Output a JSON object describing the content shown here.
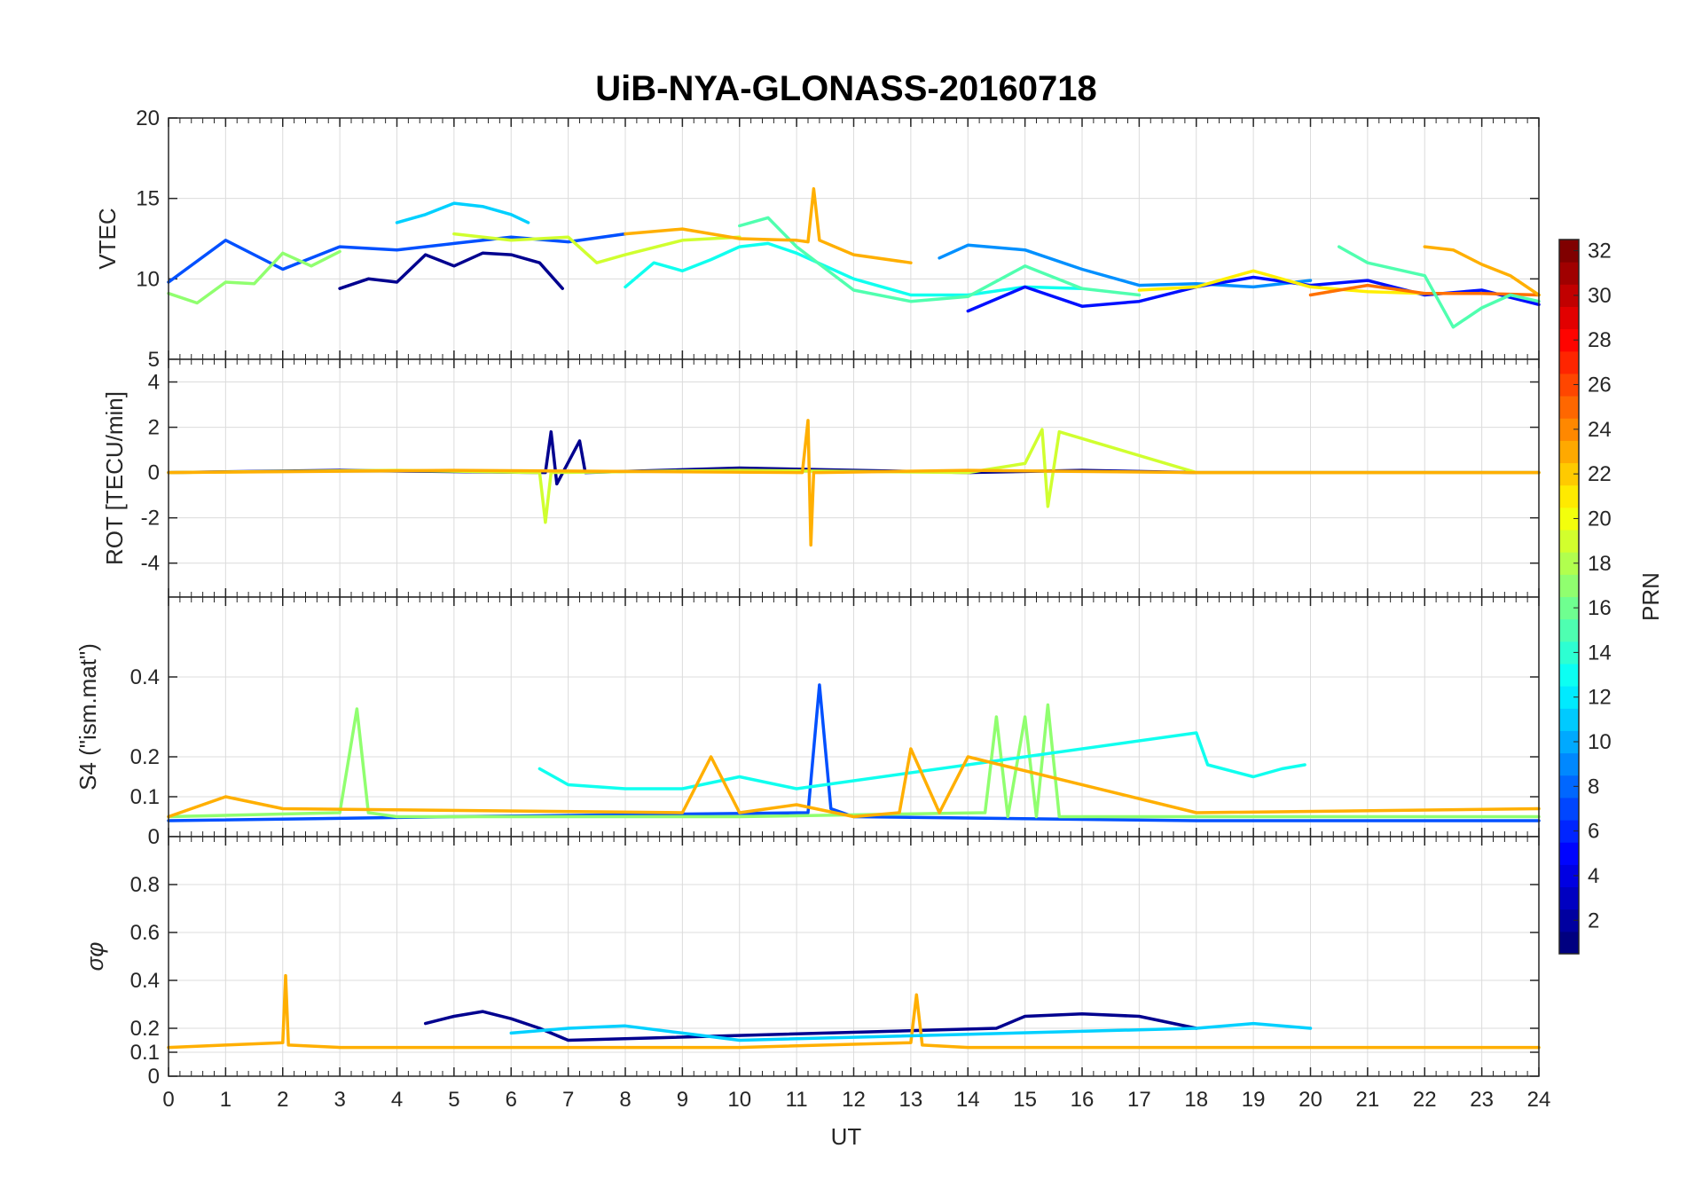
{
  "title": "UiB-NYA-GLONASS-20160718",
  "xlabel": "UT",
  "x_ticks": [
    "0",
    "1",
    "2",
    "3",
    "4",
    "5",
    "6",
    "7",
    "8",
    "9",
    "10",
    "11",
    "12",
    "13",
    "14",
    "15",
    "16",
    "17",
    "18",
    "19",
    "20",
    "21",
    "22",
    "23",
    "24"
  ],
  "colorbar": {
    "label": "PRN",
    "range": [
      1,
      32
    ],
    "colormap": "jet",
    "ticks": [
      "2",
      "4",
      "6",
      "8",
      "10",
      "12",
      "14",
      "16",
      "18",
      "20",
      "22",
      "24",
      "26",
      "28",
      "30",
      "32"
    ]
  },
  "colors": {
    "prn_2": "#00008F",
    "prn_4": "#0010FF",
    "prn_6": "#0050FF",
    "prn_8": "#0090FF",
    "prn_10": "#00D0FF",
    "prn_12": "#10FFEF",
    "prn_14": "#50FFAF",
    "prn_16": "#90FF6F",
    "prn_18": "#D0FF2F",
    "prn_20": "#FFEF00",
    "prn_22": "#FFAF00",
    "prn_24": "#FF7000",
    "prn_26": "#FF3000",
    "prn_30": "#CF0000",
    "prn_32": "#800000"
  },
  "chart_data": [
    {
      "type": "line",
      "ylabel": "VTEC",
      "xlim": [
        0,
        24
      ],
      "ylim": [
        5,
        20
      ],
      "y_ticks": [
        "5",
        "10",
        "15",
        "20"
      ],
      "grid": true,
      "series": [
        {
          "color": "#0050FF",
          "x": [
            0,
            1,
            2,
            3,
            4,
            5,
            6,
            7,
            8
          ],
          "y": [
            9.8,
            12.4,
            10.6,
            12.0,
            11.8,
            12.2,
            12.6,
            12.3,
            12.8
          ]
        },
        {
          "color": "#00D0FF",
          "x": [
            4,
            4.5,
            5,
            5.5,
            6,
            6.3
          ],
          "y": [
            13.5,
            14.0,
            14.7,
            14.5,
            14.0,
            13.5
          ]
        },
        {
          "color": "#00008F",
          "x": [
            3,
            3.5,
            4,
            4.5,
            5,
            5.5,
            6,
            6.5,
            6.9
          ],
          "y": [
            9.4,
            10.0,
            9.8,
            11.5,
            10.8,
            11.6,
            11.5,
            11.0,
            9.4
          ]
        },
        {
          "color": "#D0FF2F",
          "x": [
            5,
            6,
            7,
            7.5,
            8,
            9,
            10
          ],
          "y": [
            12.8,
            12.4,
            12.6,
            11.0,
            11.5,
            12.4,
            12.6
          ]
        },
        {
          "color": "#10FFEF",
          "x": [
            8,
            8.5,
            9,
            9.5,
            10,
            10.5,
            11,
            12,
            13,
            14,
            15,
            16
          ],
          "y": [
            9.5,
            11.0,
            10.5,
            11.2,
            12.0,
            12.2,
            11.6,
            10.0,
            9.0,
            9.0,
            9.5,
            9.4
          ]
        },
        {
          "color": "#50FFAF",
          "x": [
            10,
            10.5,
            11,
            12,
            13,
            14,
            15,
            16,
            17
          ],
          "y": [
            13.3,
            13.8,
            12.0,
            9.3,
            8.6,
            8.9,
            10.8,
            9.4,
            9.0
          ]
        },
        {
          "color": "#FFAF00",
          "x": [
            8,
            9,
            10,
            11,
            11.2,
            11.3,
            11.4,
            12,
            13
          ],
          "y": [
            12.8,
            13.1,
            12.5,
            12.4,
            12.3,
            15.6,
            12.4,
            11.5,
            11.0
          ]
        },
        {
          "color": "#0090FF",
          "x": [
            13.5,
            14,
            15,
            16,
            17,
            18,
            19,
            20
          ],
          "y": [
            11.3,
            12.1,
            11.8,
            10.6,
            9.6,
            9.7,
            9.5,
            9.9
          ]
        },
        {
          "color": "#0010FF",
          "x": [
            14,
            15,
            16,
            17,
            18,
            19,
            20,
            21,
            22,
            23,
            24
          ],
          "y": [
            8.0,
            9.5,
            8.3,
            8.6,
            9.5,
            10.1,
            9.6,
            9.9,
            9.0,
            9.3,
            8.4
          ]
        },
        {
          "color": "#FFEF00",
          "x": [
            17,
            18,
            19,
            20,
            21,
            22
          ],
          "y": [
            9.3,
            9.5,
            10.5,
            9.5,
            9.2,
            9.1
          ]
        },
        {
          "color": "#FF7000",
          "x": [
            20,
            21,
            22,
            23,
            24
          ],
          "y": [
            9.0,
            9.6,
            9.1,
            9.1,
            9.0
          ]
        },
        {
          "color": "#FFAF00",
          "x": [
            22,
            22.5,
            23,
            23.5,
            24
          ],
          "y": [
            12.0,
            11.8,
            10.9,
            10.2,
            9.0
          ]
        },
        {
          "color": "#50FFAF",
          "x": [
            20.5,
            21,
            22,
            22.5,
            23,
            23.5,
            24
          ],
          "y": [
            12.0,
            11.0,
            10.2,
            7.0,
            8.2,
            9.0,
            8.6
          ]
        },
        {
          "color": "#90FF6F",
          "x": [
            0,
            0.5,
            1,
            1.5,
            2,
            2.5,
            3
          ],
          "y": [
            9.1,
            8.5,
            9.8,
            9.7,
            11.6,
            10.8,
            11.7
          ]
        }
      ]
    },
    {
      "type": "line",
      "ylabel": "ROT [TECU/min]",
      "xlim": [
        0,
        24
      ],
      "ylim": [
        -5.5,
        5
      ],
      "y_ticks": [
        "-4",
        "-2",
        "0",
        "2",
        "4"
      ],
      "grid": true,
      "series": [
        {
          "color": "#00008F",
          "x": [
            0,
            3,
            6.6,
            6.7,
            6.8,
            7.2,
            7.3,
            10,
            14,
            16,
            18,
            24
          ],
          "y": [
            0,
            0.1,
            0,
            1.8,
            -0.5,
            1.4,
            0,
            0.2,
            0,
            0.1,
            0,
            0
          ]
        },
        {
          "color": "#D0FF2F",
          "x": [
            0,
            4,
            6.5,
            6.6,
            6.7,
            10,
            14,
            15,
            15.3,
            15.4,
            15.6,
            18,
            24
          ],
          "y": [
            0,
            0.1,
            0,
            -2.2,
            0,
            0.1,
            0,
            0.4,
            1.9,
            -1.5,
            1.8,
            0,
            0
          ]
        },
        {
          "color": "#FFAF00",
          "x": [
            0,
            5,
            11.1,
            11.2,
            11.25,
            11.3,
            11.4,
            14,
            18,
            24
          ],
          "y": [
            0,
            0.1,
            0,
            2.3,
            -3.2,
            0,
            0,
            0.1,
            0,
            0
          ]
        }
      ]
    },
    {
      "type": "line",
      "ylabel": "S4 (\"ism.mat\")",
      "xlim": [
        0,
        24
      ],
      "ylim": [
        0,
        0.6
      ],
      "y_ticks": [
        "0",
        "0.1",
        "0.2",
        "0.4"
      ],
      "grid": true,
      "series": [
        {
          "color": "#0050FF",
          "x": [
            0,
            5,
            11.2,
            11.4,
            11.6,
            12,
            18,
            24
          ],
          "y": [
            0.04,
            0.05,
            0.06,
            0.38,
            0.07,
            0.05,
            0.04,
            0.04
          ]
        },
        {
          "color": "#90FF6F",
          "x": [
            0,
            3,
            3.3,
            3.5,
            4,
            10,
            14.3,
            14.5,
            14.7,
            15,
            15.2,
            15.4,
            15.6,
            16,
            20,
            24
          ],
          "y": [
            0.05,
            0.06,
            0.32,
            0.06,
            0.05,
            0.05,
            0.06,
            0.3,
            0.05,
            0.3,
            0.05,
            0.33,
            0.05,
            0.05,
            0.05,
            0.05
          ]
        },
        {
          "color": "#10FFEF",
          "x": [
            6.5,
            7,
            8,
            9,
            10,
            11,
            18,
            18.2,
            19,
            19.5,
            19.9
          ],
          "y": [
            0.17,
            0.13,
            0.12,
            0.12,
            0.15,
            0.12,
            0.26,
            0.18,
            0.15,
            0.17,
            0.18
          ]
        },
        {
          "color": "#FFAF00",
          "x": [
            0,
            1,
            2,
            9,
            9.5,
            10,
            11,
            12,
            12.8,
            13,
            13.5,
            14,
            18,
            24
          ],
          "y": [
            0.05,
            0.1,
            0.07,
            0.06,
            0.2,
            0.06,
            0.08,
            0.05,
            0.06,
            0.22,
            0.06,
            0.2,
            0.06,
            0.07
          ]
        }
      ]
    },
    {
      "type": "line",
      "ylabel": "σφ",
      "xlim": [
        0,
        24
      ],
      "ylim": [
        0,
        1
      ],
      "y_ticks": [
        "0",
        "0.1",
        "0.2",
        "0.4",
        "0.6",
        "0.8"
      ],
      "grid": true,
      "series": [
        {
          "color": "#00008F",
          "x": [
            4.5,
            5,
            5.5,
            6,
            6.5,
            7,
            14.5,
            15,
            16,
            17,
            18
          ],
          "y": [
            0.22,
            0.25,
            0.27,
            0.24,
            0.2,
            0.15,
            0.2,
            0.25,
            0.26,
            0.25,
            0.2
          ]
        },
        {
          "color": "#FFAF00",
          "x": [
            0,
            1,
            2,
            2.05,
            2.1,
            3,
            10,
            13,
            13.1,
            13.2,
            14,
            24
          ],
          "y": [
            0.12,
            0.13,
            0.14,
            0.42,
            0.13,
            0.12,
            0.12,
            0.14,
            0.34,
            0.13,
            0.12,
            0.12
          ]
        },
        {
          "color": "#00D0FF",
          "x": [
            6,
            7,
            8,
            9,
            10,
            18,
            19,
            20
          ],
          "y": [
            0.18,
            0.2,
            0.21,
            0.18,
            0.15,
            0.2,
            0.22,
            0.2
          ]
        }
      ]
    }
  ]
}
